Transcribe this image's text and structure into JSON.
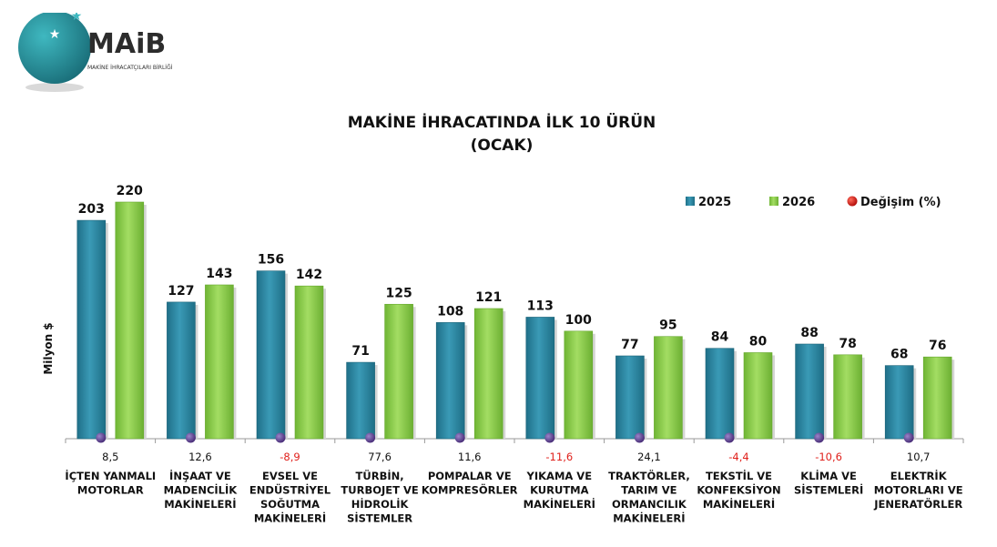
{
  "logo": {
    "name": "MAiB",
    "subtitle": "MAKİNE İHRACATÇILARI BİRLİĞİ"
  },
  "colors": {
    "s2025": "#2f8ba8",
    "s2026": "#8fd14f",
    "dot": "#5b3f8c",
    "positive": "#111111",
    "negative": "#e0201b",
    "legend_dot": "#d3201e"
  },
  "chart_data": {
    "type": "bar",
    "title": [
      "MAKİNE İHRACATINDA İLK 10 ÜRÜN",
      "(OCAK)"
    ],
    "ylabel": "Milyon $",
    "xlabel": "",
    "ylim": [
      0,
      240
    ],
    "grid": false,
    "legend_position": "top-right",
    "legend": [
      "2025",
      "2026",
      "Değişim (%)"
    ],
    "categories": [
      [
        "İÇTEN YANMALI",
        "MOTORLAR"
      ],
      [
        "İNŞAAT VE",
        "MADENCİLİK",
        "MAKİNELERİ"
      ],
      [
        "EVSEL VE",
        "ENDÜSTRİYEL",
        "SOĞUTMA",
        "MAKİNELERİ"
      ],
      [
        "TÜRBİN,",
        "TURBOJET VE",
        "HİDROLİK",
        "SİSTEMLER"
      ],
      [
        "POMPALAR VE",
        "KOMPRESÖRLER"
      ],
      [
        "YIKAMA VE",
        "KURUTMA",
        "MAKİNELERİ"
      ],
      [
        "TRAKTÖRLER,",
        "TARIM VE",
        "ORMANCILIK",
        "MAKİNELERİ"
      ],
      [
        "TEKSTİL VE",
        "KONFEKSİYON",
        "MAKİNELERİ"
      ],
      [
        "KLİMA VE",
        "SİSTEMLERİ"
      ],
      [
        "ELEKTRİK",
        "MOTORLARI VE",
        "JENERATÖRLER"
      ]
    ],
    "series": [
      {
        "name": "2025",
        "values": [
          203,
          127,
          156,
          71,
          108,
          113,
          77,
          84,
          88,
          68
        ]
      },
      {
        "name": "2026",
        "values": [
          220,
          143,
          142,
          125,
          121,
          100,
          95,
          80,
          78,
          76
        ]
      }
    ],
    "change_pct": [
      "8,5",
      "12,6",
      "-8,9",
      "77,6",
      "11,6",
      "-11,6",
      "24,1",
      "-4,4",
      "-10,6",
      "10,7"
    ]
  }
}
